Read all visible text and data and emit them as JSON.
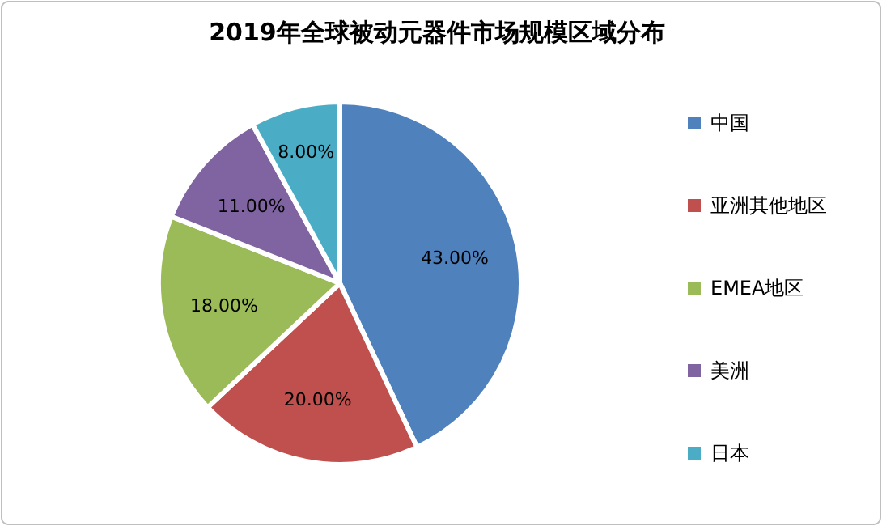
{
  "chart_data": {
    "type": "pie",
    "title": "2019年全球被动元器件市场规模区域分布",
    "categories": [
      "中国",
      "亚洲其他地区",
      "EMEA地区",
      "美洲",
      "日本"
    ],
    "values": [
      43,
      20,
      18,
      11,
      8
    ],
    "value_labels": [
      "43.00%",
      "20.00%",
      "18.00%",
      "11.00%",
      "8.00%"
    ],
    "colors": [
      "#4f81bd",
      "#c0504d",
      "#9bbb59",
      "#8064a2",
      "#4bacc6"
    ],
    "legend": "right"
  }
}
